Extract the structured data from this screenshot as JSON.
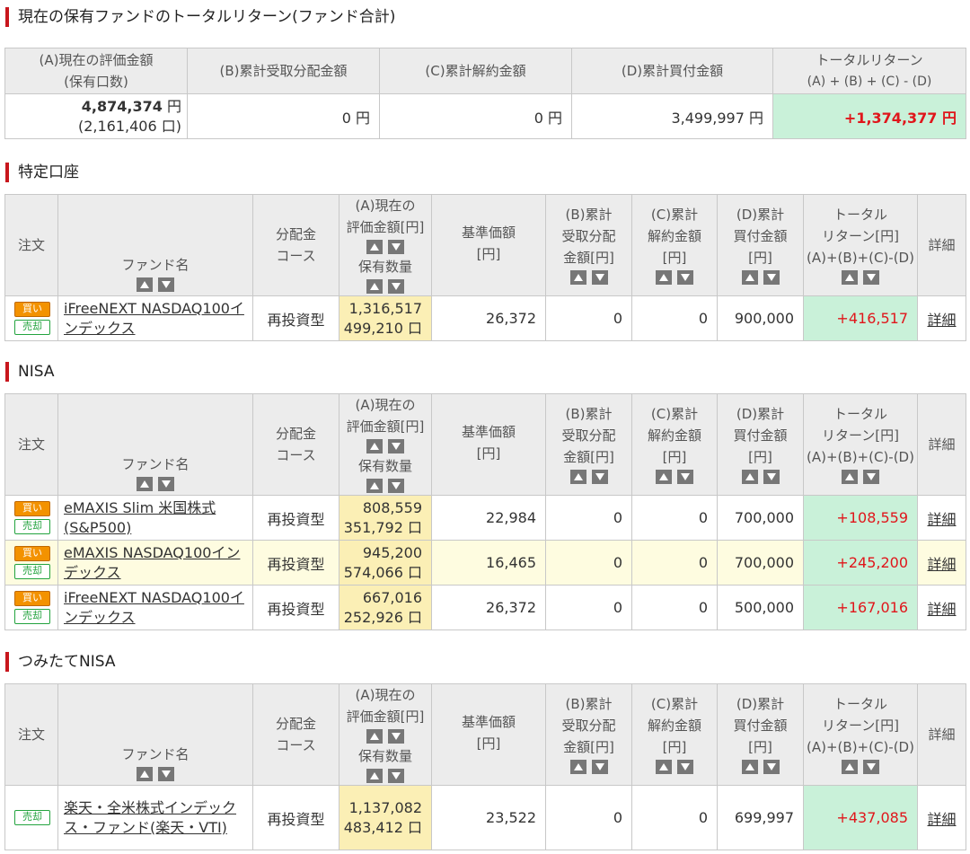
{
  "summary": {
    "title": "現在の保有ファンドのトータルリターン(ファンド合計)",
    "headers": {
      "a1": "(A)現在の評価金額",
      "a2": "(保有口数)",
      "b": "(B)累計受取分配金額",
      "c": "(C)累計解約金額",
      "d": "(D)累計買付金額",
      "t1": "トータルリターン",
      "t2": "(A) + (B) + (C) - (D)"
    },
    "values": {
      "a_value": "4,874,374",
      "a_unit": "円",
      "a_units": "(2,161,406 口)",
      "b": "0 円",
      "c": "0 円",
      "d": "3,499,997 円",
      "total": "+1,374,377 円"
    }
  },
  "headers": {
    "order": "注文",
    "fund": "ファンド名",
    "course1": "分配金",
    "course2": "コース",
    "a1": "(A)現在の",
    "a2": "評価金額[円]",
    "a3": "保有数量",
    "base1": "基準価額",
    "base2": "[円]",
    "b1": "(B)累計",
    "b2": "受取分配",
    "b3": "金額[円]",
    "c1": "(C)累計",
    "c2": "解約金額",
    "c3": "[円]",
    "d1": "(D)累計",
    "d2": "買付金額",
    "d3": "[円]",
    "t1": "トータル",
    "t2": "リターン[円]",
    "t3": "(A)+(B)+(C)-(D)",
    "detail": "詳細"
  },
  "buttons": {
    "buy": "買い",
    "sell": "売却"
  },
  "sections": {
    "tokutei": {
      "title": "特定口座",
      "rows": [
        {
          "fund": "iFreeNEXT NASDAQ100インデックス",
          "course": "再投資型",
          "value": "1,316,517",
          "qty": "499,210 口",
          "base": "26,372",
          "b": "0",
          "c": "0",
          "d": "900,000",
          "total": "+416,517",
          "detail": "詳細"
        }
      ]
    },
    "nisa": {
      "title": "NISA",
      "rows": [
        {
          "fund": "eMAXIS Slim 米国株式(S&P500)",
          "course": "再投資型",
          "value": "808,559",
          "qty": "351,792 口",
          "base": "22,984",
          "b": "0",
          "c": "0",
          "d": "700,000",
          "total": "+108,559",
          "detail": "詳細"
        },
        {
          "fund": "eMAXIS NASDAQ100インデックス",
          "course": "再投資型",
          "value": "945,200",
          "qty": "574,066 口",
          "base": "16,465",
          "b": "0",
          "c": "0",
          "d": "700,000",
          "total": "+245,200",
          "detail": "詳細"
        },
        {
          "fund": "iFreeNEXT NASDAQ100インデックス",
          "course": "再投資型",
          "value": "667,016",
          "qty": "252,926 口",
          "base": "26,372",
          "b": "0",
          "c": "0",
          "d": "500,000",
          "total": "+167,016",
          "detail": "詳細"
        }
      ]
    },
    "tsumitate": {
      "title": "つみたてNISA",
      "rows": [
        {
          "fund": "楽天・全米株式インデックス・ファンド(楽天・VTI)",
          "course": "再投資型",
          "value": "1,137,082",
          "qty": "483,412 口",
          "base": "23,522",
          "b": "0",
          "c": "0",
          "d": "699,997",
          "total": "+437,085",
          "detail": "詳細"
        }
      ]
    }
  },
  "colors": {
    "accent": "#c8161d",
    "positive": "#e0161b",
    "total_bg": "#c9f1d9",
    "value_bg": "#fbefb5"
  }
}
